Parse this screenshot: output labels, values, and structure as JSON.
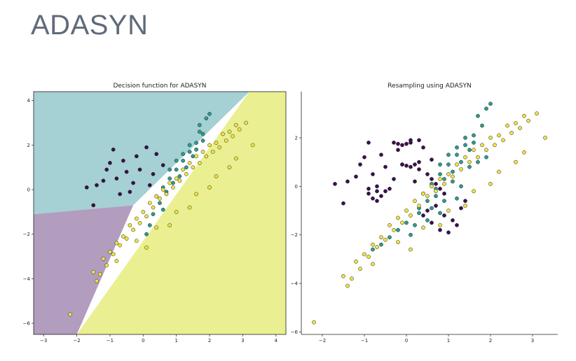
{
  "slide": {
    "title": "ADASYN"
  },
  "chart_data": [
    {
      "type": "scatter",
      "title": "Decision function for ADASYN",
      "xlabel": "",
      "ylabel": "",
      "xlim": [
        -3.3,
        4.3
      ],
      "ylim": [
        -6.5,
        4.4
      ],
      "x_ticks": [
        -3,
        -2,
        -1,
        0,
        1,
        2,
        3,
        4
      ],
      "y_ticks": [
        -6,
        -4,
        -2,
        0,
        2,
        4
      ],
      "background_regions": true,
      "region_colors": {
        "class_0": "#b29dbf",
        "class_1": "#a5d0d4",
        "class_2": "#eaef91"
      },
      "series": [
        {
          "color": "#3b0f4f",
          "values": [
            [
              -1.2,
              0.4
            ],
            [
              -1.0,
              1.2
            ],
            [
              -0.9,
              1.8
            ],
            [
              -0.6,
              1.3
            ],
            [
              -0.5,
              0.8
            ],
            [
              -1.4,
              0.2
            ],
            [
              -0.8,
              0.5
            ],
            [
              -0.3,
              0.3
            ],
            [
              -0.2,
              1.5
            ],
            [
              0.1,
              1.9
            ],
            [
              0.3,
              0.7
            ],
            [
              -1.7,
              0.1
            ],
            [
              -1.5,
              -0.7
            ],
            [
              -0.4,
              -0.1
            ],
            [
              -0.1,
              0.9
            ],
            [
              0.4,
              1.6
            ],
            [
              0.6,
              1.1
            ],
            [
              -0.7,
              -0.2
            ],
            [
              -1.1,
              0.9
            ],
            [
              0.2,
              0.2
            ]
          ]
        },
        {
          "color": "#2a9d8f",
          "values": [
            [
              0.4,
              -0.3
            ],
            [
              0.6,
              0.1
            ],
            [
              0.8,
              0.5
            ],
            [
              1.0,
              0.9
            ],
            [
              1.2,
              1.3
            ],
            [
              1.4,
              1.7
            ],
            [
              1.6,
              2.1
            ],
            [
              1.8,
              2.5
            ],
            [
              1.7,
              2.9
            ],
            [
              1.9,
              3.2
            ],
            [
              2.0,
              3.4
            ],
            [
              0.5,
              -0.6
            ],
            [
              0.7,
              -0.1
            ],
            [
              0.9,
              0.3
            ],
            [
              1.1,
              0.6
            ],
            [
              1.3,
              1.0
            ],
            [
              1.5,
              1.5
            ],
            [
              1.6,
              1.8
            ],
            [
              1.4,
              2.0
            ],
            [
              1.2,
              1.6
            ],
            [
              1.0,
              1.3
            ],
            [
              0.8,
              0.9
            ],
            [
              0.3,
              -1.1
            ],
            [
              0.2,
              -1.6
            ],
            [
              0.1,
              -2.0
            ],
            [
              0.6,
              -0.9
            ],
            [
              1.8,
              2.2
            ],
            [
              1.7,
              2.6
            ]
          ]
        },
        {
          "color": "#f0e442",
          "values": [
            [
              -2.2,
              -5.6
            ],
            [
              -1.3,
              -3.8
            ],
            [
              -1.1,
              -3.4
            ],
            [
              -0.9,
              -2.9
            ],
            [
              -0.7,
              -2.5
            ],
            [
              -0.5,
              -2.2
            ],
            [
              -0.3,
              -1.8
            ],
            [
              -0.1,
              -1.5
            ],
            [
              0.1,
              -1.2
            ],
            [
              0.3,
              -0.8
            ],
            [
              0.5,
              -0.4
            ],
            [
              0.7,
              -0.2
            ],
            [
              0.9,
              0.1
            ],
            [
              1.1,
              0.4
            ],
            [
              1.3,
              0.7
            ],
            [
              1.5,
              1.0
            ],
            [
              1.7,
              1.2
            ],
            [
              1.9,
              1.5
            ],
            [
              2.1,
              1.7
            ],
            [
              2.3,
              1.9
            ],
            [
              2.5,
              2.2
            ],
            [
              2.7,
              2.4
            ],
            [
              2.9,
              2.7
            ],
            [
              3.1,
              3.0
            ],
            [
              3.3,
              2.0
            ],
            [
              -1.4,
              -4.1
            ],
            [
              -1.5,
              -3.7
            ],
            [
              -1.2,
              -3.1
            ],
            [
              -1.0,
              -2.8
            ],
            [
              -0.8,
              -2.4
            ],
            [
              -0.6,
              -2.1
            ],
            [
              -0.4,
              -1.6
            ],
            [
              -0.2,
              -1.3
            ],
            [
              0.0,
              -1.0
            ],
            [
              0.2,
              -0.6
            ],
            [
              0.4,
              -0.3
            ],
            [
              0.6,
              0.0
            ],
            [
              0.8,
              0.3
            ],
            [
              1.0,
              0.5
            ],
            [
              1.2,
              0.9
            ],
            [
              1.4,
              1.2
            ],
            [
              1.6,
              1.5
            ],
            [
              1.8,
              1.7
            ],
            [
              2.0,
              2.0
            ],
            [
              2.2,
              2.1
            ],
            [
              2.4,
              2.5
            ],
            [
              2.6,
              2.6
            ],
            [
              2.8,
              2.9
            ],
            [
              -0.2,
              -2.3
            ],
            [
              0.4,
              -1.7
            ],
            [
              1.0,
              -1.0
            ],
            [
              1.6,
              -0.2
            ],
            [
              2.2,
              0.6
            ],
            [
              2.8,
              1.4
            ],
            [
              -0.8,
              -3.2
            ],
            [
              0.1,
              -2.6
            ],
            [
              0.8,
              -1.6
            ],
            [
              1.4,
              -0.8
            ],
            [
              2.0,
              0.1
            ],
            [
              2.6,
              1.0
            ]
          ]
        }
      ]
    },
    {
      "type": "scatter",
      "title": "Resampling using ADASYN",
      "xlabel": "",
      "ylabel": "",
      "xlim": [
        -2.5,
        3.6
      ],
      "ylim": [
        -6.1,
        3.9
      ],
      "x_ticks": [
        -2,
        -1,
        0,
        1,
        2,
        3
      ],
      "y_ticks": [
        -6,
        -4,
        -2,
        0,
        2
      ],
      "background_regions": false,
      "series": [
        {
          "color": "#3b0f4f",
          "values": [
            [
              -1.2,
              0.4
            ],
            [
              -1.0,
              1.2
            ],
            [
              -0.9,
              1.8
            ],
            [
              -0.6,
              1.3
            ],
            [
              -0.5,
              0.8
            ],
            [
              -1.4,
              0.2
            ],
            [
              -0.8,
              0.5
            ],
            [
              -0.3,
              0.3
            ],
            [
              -0.2,
              1.5
            ],
            [
              0.1,
              1.9
            ],
            [
              0.3,
              0.7
            ],
            [
              -1.7,
              0.1
            ],
            [
              -1.5,
              -0.7
            ],
            [
              -0.4,
              -0.1
            ],
            [
              -0.1,
              0.9
            ],
            [
              0.4,
              1.6
            ],
            [
              0.6,
              1.1
            ],
            [
              -0.7,
              -0.2
            ],
            [
              -1.1,
              0.9
            ],
            [
              0.2,
              0.2
            ],
            [
              -0.9,
              -0.3
            ],
            [
              -0.8,
              -0.5
            ],
            [
              -0.7,
              -0.6
            ],
            [
              -0.6,
              -0.4
            ],
            [
              -0.5,
              -0.2
            ],
            [
              -0.9,
              -0.1
            ],
            [
              -0.7,
              0.0
            ],
            [
              -0.1,
              0.9
            ],
            [
              0.0,
              0.85
            ],
            [
              0.1,
              0.8
            ],
            [
              0.2,
              0.9
            ],
            [
              0.3,
              1.0
            ],
            [
              -0.3,
              1.8
            ],
            [
              -0.2,
              1.75
            ],
            [
              -0.1,
              1.7
            ],
            [
              0.0,
              1.75
            ],
            [
              0.1,
              1.8
            ],
            [
              0.3,
              1.9
            ],
            [
              0.5,
              0.5
            ],
            [
              0.6,
              0.3
            ],
            [
              0.7,
              0.1
            ],
            [
              0.8,
              -0.1
            ],
            [
              0.9,
              -0.3
            ],
            [
              0.4,
              -1.2
            ],
            [
              0.6,
              -1.5
            ],
            [
              0.8,
              -1.8
            ],
            [
              1.0,
              -1.9
            ],
            [
              1.2,
              -1.6
            ],
            [
              0.5,
              -1.0
            ],
            [
              0.7,
              -0.8
            ],
            [
              0.9,
              -1.2
            ],
            [
              1.1,
              -1.4
            ],
            [
              1.3,
              -0.9
            ],
            [
              1.4,
              -0.6
            ]
          ]
        },
        {
          "color": "#2a9d8f",
          "values": [
            [
              0.4,
              -0.3
            ],
            [
              0.6,
              0.1
            ],
            [
              0.8,
              0.5
            ],
            [
              1.0,
              0.9
            ],
            [
              1.2,
              1.3
            ],
            [
              1.4,
              1.7
            ],
            [
              1.6,
              2.1
            ],
            [
              1.8,
              2.5
            ],
            [
              1.7,
              2.9
            ],
            [
              1.9,
              3.2
            ],
            [
              2.0,
              3.4
            ],
            [
              0.5,
              -0.6
            ],
            [
              0.7,
              -0.1
            ],
            [
              0.9,
              0.3
            ],
            [
              1.1,
              0.6
            ],
            [
              1.3,
              1.0
            ],
            [
              1.5,
              1.5
            ],
            [
              1.6,
              1.8
            ],
            [
              1.4,
              2.0
            ],
            [
              1.2,
              1.6
            ],
            [
              1.0,
              1.3
            ],
            [
              0.8,
              0.9
            ],
            [
              0.3,
              -1.1
            ],
            [
              0.2,
              -1.6
            ],
            [
              0.1,
              -2.0
            ],
            [
              0.6,
              -0.9
            ],
            [
              -0.2,
              -1.8
            ],
            [
              -0.4,
              -2.1
            ],
            [
              -0.6,
              -2.4
            ],
            [
              -0.8,
              -2.6
            ],
            [
              0.0,
              -1.5
            ],
            [
              0.3,
              -0.9
            ],
            [
              0.7,
              -0.4
            ],
            [
              1.1,
              0.2
            ],
            [
              1.5,
              0.8
            ],
            [
              1.7,
              1.0
            ],
            [
              1.9,
              1.2
            ],
            [
              0.9,
              -0.6
            ],
            [
              1.3,
              0.0
            ],
            [
              0.5,
              -1.4
            ],
            [
              0.8,
              -1.1
            ],
            [
              1.2,
              -0.5
            ]
          ]
        },
        {
          "color": "#f0e442",
          "values": [
            [
              -2.2,
              -5.6
            ],
            [
              -1.3,
              -3.8
            ],
            [
              -1.1,
              -3.4
            ],
            [
              -0.9,
              -2.9
            ],
            [
              -0.7,
              -2.5
            ],
            [
              -0.5,
              -2.2
            ],
            [
              -0.3,
              -1.8
            ],
            [
              -0.1,
              -1.5
            ],
            [
              0.1,
              -1.2
            ],
            [
              0.3,
              -0.8
            ],
            [
              0.5,
              -0.4
            ],
            [
              0.7,
              -0.2
            ],
            [
              0.9,
              0.1
            ],
            [
              1.1,
              0.4
            ],
            [
              1.3,
              0.7
            ],
            [
              1.5,
              1.0
            ],
            [
              1.7,
              1.2
            ],
            [
              1.9,
              1.5
            ],
            [
              2.1,
              1.7
            ],
            [
              2.3,
              1.9
            ],
            [
              2.5,
              2.2
            ],
            [
              2.7,
              2.4
            ],
            [
              2.9,
              2.7
            ],
            [
              3.1,
              3.0
            ],
            [
              3.3,
              2.0
            ],
            [
              -1.4,
              -4.1
            ],
            [
              -1.5,
              -3.7
            ],
            [
              -1.2,
              -3.1
            ],
            [
              -1.0,
              -2.8
            ],
            [
              -0.8,
              -2.4
            ],
            [
              -0.6,
              -2.1
            ],
            [
              -0.4,
              -1.6
            ],
            [
              -0.2,
              -1.3
            ],
            [
              0.0,
              -1.0
            ],
            [
              0.2,
              -0.6
            ],
            [
              0.4,
              -0.3
            ],
            [
              0.6,
              0.0
            ],
            [
              0.8,
              0.3
            ],
            [
              1.0,
              0.5
            ],
            [
              1.2,
              0.9
            ],
            [
              1.4,
              1.2
            ],
            [
              1.6,
              1.5
            ],
            [
              1.8,
              1.7
            ],
            [
              2.0,
              2.0
            ],
            [
              2.2,
              2.1
            ],
            [
              2.4,
              2.5
            ],
            [
              2.6,
              2.6
            ],
            [
              2.8,
              2.9
            ],
            [
              -0.2,
              -2.3
            ],
            [
              0.4,
              -1.7
            ],
            [
              1.0,
              -1.0
            ],
            [
              1.6,
              -0.2
            ],
            [
              2.2,
              0.6
            ],
            [
              2.8,
              1.4
            ],
            [
              -0.8,
              -3.2
            ],
            [
              0.1,
              -2.6
            ],
            [
              0.8,
              -1.6
            ],
            [
              1.4,
              -0.8
            ],
            [
              2.0,
              0.1
            ],
            [
              2.6,
              1.0
            ]
          ]
        }
      ]
    }
  ]
}
